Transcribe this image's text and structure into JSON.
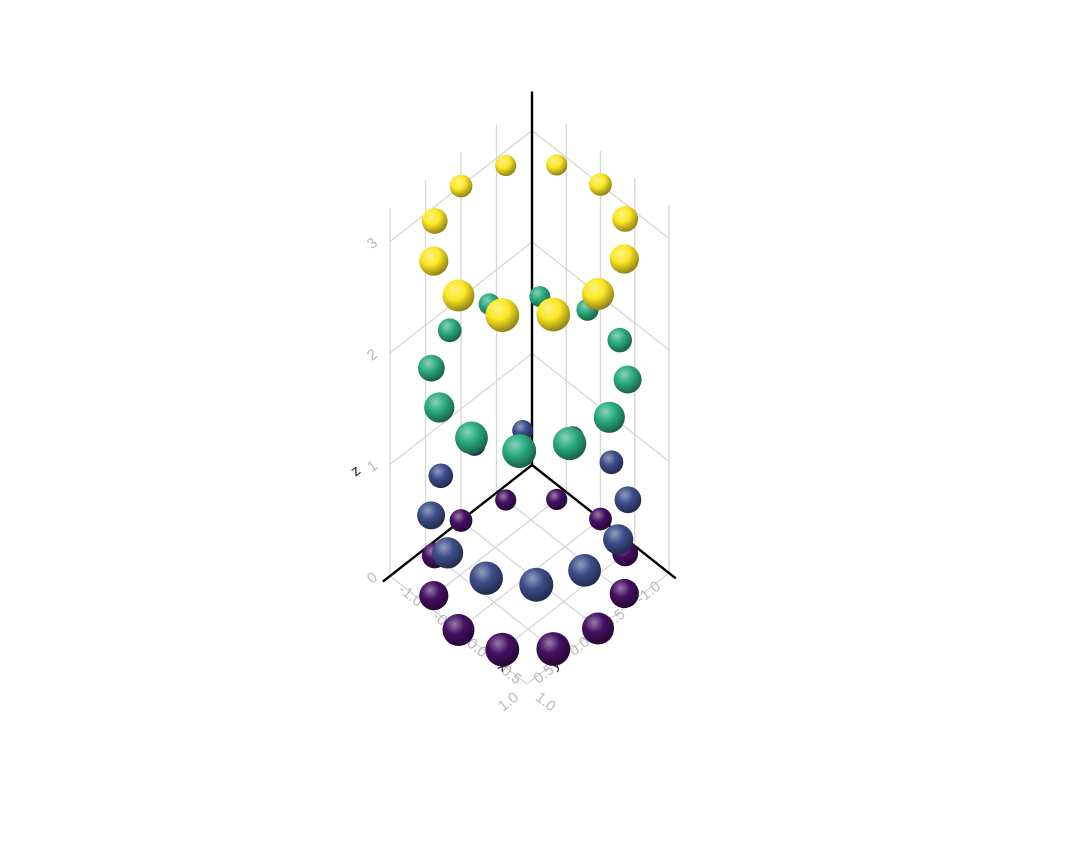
{
  "chart_data": {
    "type": "scatter",
    "dimensions": "3d",
    "marker": "sphere",
    "colormap": "viridis",
    "color_by": "z",
    "grid": true,
    "axes": {
      "x": {
        "label": "x",
        "ticks": [
          "-1.0",
          "-0.5",
          "0.0",
          "0.5",
          "1.0"
        ],
        "range": [
          -1,
          1
        ]
      },
      "y": {
        "label": "y",
        "ticks": [
          "-1.0",
          "-0.5",
          "0.0",
          "0.5",
          "1.0"
        ],
        "range": [
          -1,
          1
        ]
      },
      "z": {
        "label": "z",
        "ticks": [
          "0",
          "1",
          "2",
          "3"
        ],
        "range": [
          0,
          3.3
        ]
      }
    },
    "points": [
      {
        "x": 1.0,
        "y": 0.0,
        "z": 0.0
      },
      {
        "x": 0.866,
        "y": 0.5,
        "z": 0.0
      },
      {
        "x": 0.5,
        "y": 0.866,
        "z": 0.0
      },
      {
        "x": 0.0,
        "y": 1.0,
        "z": 0.0
      },
      {
        "x": -0.5,
        "y": 0.866,
        "z": 0.0
      },
      {
        "x": -0.866,
        "y": 0.5,
        "z": 0.0
      },
      {
        "x": -1.0,
        "y": 0.0,
        "z": 0.0
      },
      {
        "x": -0.866,
        "y": -0.5,
        "z": 0.0
      },
      {
        "x": -0.5,
        "y": -0.866,
        "z": 0.0
      },
      {
        "x": 0.0,
        "y": -1.0,
        "z": 0.0
      },
      {
        "x": 0.5,
        "y": -0.866,
        "z": 0.0
      },
      {
        "x": 0.866,
        "y": -0.5,
        "z": 0.0
      },
      {
        "x": 0.985,
        "y": 0.174,
        "z": 0.6
      },
      {
        "x": 0.766,
        "y": 0.643,
        "z": 0.6
      },
      {
        "x": 0.342,
        "y": 0.94,
        "z": 0.6
      },
      {
        "x": -0.174,
        "y": 0.985,
        "z": 0.6
      },
      {
        "x": -0.643,
        "y": 0.766,
        "z": 0.6
      },
      {
        "x": -0.94,
        "y": 0.342,
        "z": 0.6
      },
      {
        "x": -0.985,
        "y": -0.174,
        "z": 0.6
      },
      {
        "x": -0.766,
        "y": -0.643,
        "z": 0.6
      },
      {
        "x": -0.342,
        "y": -0.94,
        "z": 0.6
      },
      {
        "x": 0.174,
        "y": -0.985,
        "z": 0.6
      },
      {
        "x": 0.643,
        "y": -0.766,
        "z": 0.6
      },
      {
        "x": 0.94,
        "y": -0.342,
        "z": 0.6
      },
      {
        "x": 0.94,
        "y": 0.342,
        "z": 1.8
      },
      {
        "x": 0.643,
        "y": 0.766,
        "z": 1.8
      },
      {
        "x": 0.174,
        "y": 0.985,
        "z": 1.8
      },
      {
        "x": -0.342,
        "y": 0.94,
        "z": 1.8
      },
      {
        "x": -0.766,
        "y": 0.643,
        "z": 1.8
      },
      {
        "x": -0.985,
        "y": 0.174,
        "z": 1.8
      },
      {
        "x": -0.94,
        "y": -0.342,
        "z": 1.8
      },
      {
        "x": -0.643,
        "y": -0.766,
        "z": 1.8
      },
      {
        "x": -0.174,
        "y": -0.985,
        "z": 1.8
      },
      {
        "x": 0.342,
        "y": -0.94,
        "z": 1.8
      },
      {
        "x": 0.766,
        "y": -0.643,
        "z": 1.8
      },
      {
        "x": 0.985,
        "y": -0.174,
        "z": 1.8
      },
      {
        "x": 0.866,
        "y": 0.5,
        "z": 3.0
      },
      {
        "x": 0.5,
        "y": 0.866,
        "z": 3.0
      },
      {
        "x": 0.0,
        "y": 1.0,
        "z": 3.0
      },
      {
        "x": -0.5,
        "y": 0.866,
        "z": 3.0
      },
      {
        "x": -0.866,
        "y": 0.5,
        "z": 3.0
      },
      {
        "x": -1.0,
        "y": 0.0,
        "z": 3.0
      },
      {
        "x": -0.866,
        "y": -0.5,
        "z": 3.0
      },
      {
        "x": -0.5,
        "y": -0.866,
        "z": 3.0
      },
      {
        "x": 0.0,
        "y": -1.0,
        "z": 3.0
      },
      {
        "x": 0.5,
        "y": -0.866,
        "z": 3.0
      },
      {
        "x": 0.866,
        "y": -0.5,
        "z": 3.0
      },
      {
        "x": 1.0,
        "y": 0.0,
        "z": 3.0
      }
    ]
  }
}
